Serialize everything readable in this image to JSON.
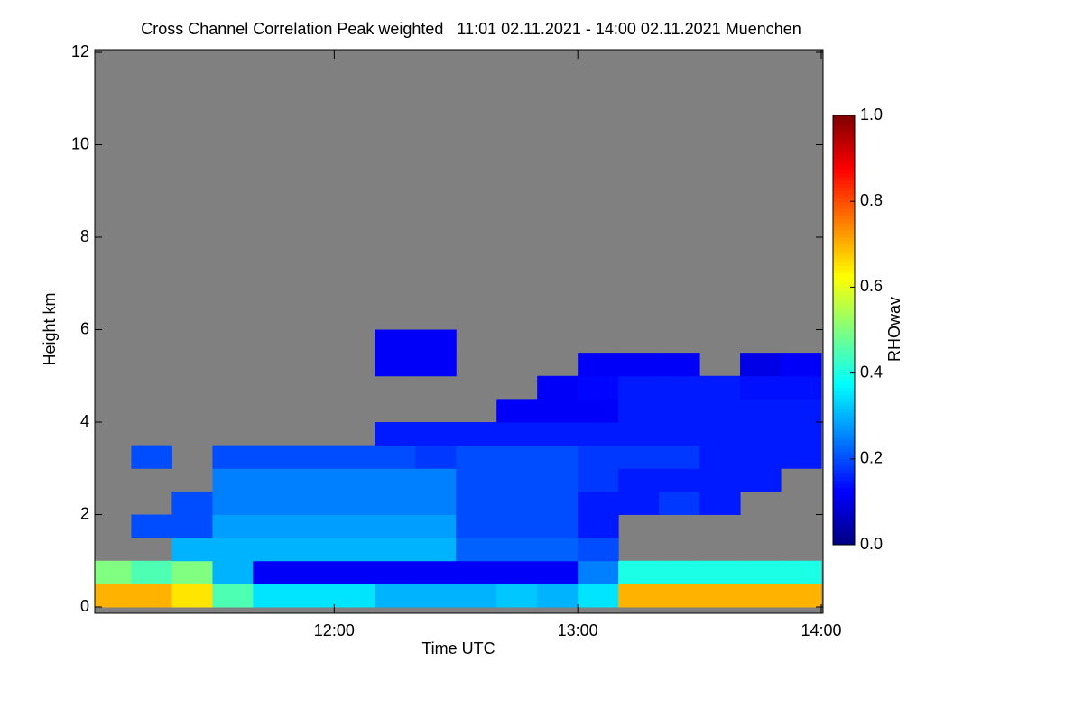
{
  "chart_data": {
    "type": "heatmap",
    "title": "Cross Channel Correlation Peak weighted   11:01 02.11.2021 - 14:00 02.11.2021 Muenchen",
    "x_label": "Time UTC",
    "y_label": "Height km",
    "colorbar_label": "RHOwav",
    "xlim": [
      661,
      840
    ],
    "xticks": [
      {
        "value": 720,
        "label": "12:00"
      },
      {
        "value": 780,
        "label": "13:00"
      },
      {
        "value": 840,
        "label": "14:00"
      }
    ],
    "ylim": [
      0,
      12
    ],
    "yticks": [
      0,
      2,
      4,
      6,
      8,
      10,
      12
    ],
    "clim": [
      0,
      1
    ],
    "cticks": [
      {
        "value": 0,
        "label": "0.0"
      },
      {
        "value": 0.2,
        "label": "0.2"
      },
      {
        "value": 0.4,
        "label": "0.4"
      },
      {
        "value": 0.6,
        "label": "0.6"
      },
      {
        "value": 0.8,
        "label": "0.8"
      },
      {
        "value": 1,
        "label": "1.0"
      }
    ],
    "colormap": "jet",
    "background_color": "#808080",
    "x_bins": [
      661,
      670,
      680,
      690,
      700,
      710,
      720,
      730,
      740,
      750,
      760,
      770,
      780,
      790,
      800,
      810,
      820,
      830,
      840
    ],
    "y_bins": [
      0,
      0.5,
      1,
      1.5,
      2,
      2.5,
      3,
      3.5,
      4,
      4.5,
      5,
      5.5,
      6
    ],
    "z": [
      [
        0.7,
        0.7,
        0.65,
        0.45,
        0.35,
        0.35,
        0.35,
        0.3,
        0.3,
        0.3,
        0.32,
        0.3,
        0.35,
        0.7,
        0.7,
        0.7,
        0.7,
        0.7
      ],
      [
        0.5,
        0.45,
        0.5,
        0.3,
        0.12,
        0.12,
        0.12,
        0.12,
        0.12,
        0.12,
        0.12,
        0.12,
        0.25,
        0.4,
        0.4,
        0.4,
        0.4,
        0.4
      ],
      [
        null,
        null,
        0.3,
        0.3,
        0.3,
        0.3,
        0.3,
        0.3,
        0.3,
        0.22,
        0.22,
        0.22,
        0.2,
        null,
        null,
        null,
        null,
        null
      ],
      [
        null,
        0.2,
        0.2,
        0.28,
        0.28,
        0.28,
        0.28,
        0.28,
        0.28,
        0.2,
        0.2,
        0.2,
        0.15,
        null,
        null,
        null,
        null,
        null
      ],
      [
        null,
        null,
        0.2,
        0.25,
        0.25,
        0.25,
        0.25,
        0.25,
        0.25,
        0.2,
        0.2,
        0.2,
        0.15,
        0.15,
        0.18,
        0.15,
        null,
        null
      ],
      [
        null,
        null,
        null,
        0.25,
        0.25,
        0.25,
        0.25,
        0.25,
        0.25,
        0.2,
        0.2,
        0.2,
        0.18,
        0.15,
        0.15,
        0.15,
        0.15,
        null
      ],
      [
        null,
        0.2,
        null,
        0.2,
        0.2,
        0.2,
        0.2,
        0.2,
        0.18,
        0.2,
        0.2,
        0.2,
        0.18,
        0.18,
        0.18,
        0.15,
        0.15,
        0.15
      ],
      [
        null,
        null,
        null,
        null,
        null,
        null,
        null,
        0.15,
        0.15,
        0.15,
        0.15,
        0.15,
        0.15,
        0.15,
        0.15,
        0.15,
        0.15,
        0.15
      ],
      [
        null,
        null,
        null,
        null,
        null,
        null,
        null,
        null,
        null,
        null,
        0.12,
        0.12,
        0.12,
        0.15,
        0.15,
        0.15,
        0.15,
        0.15
      ],
      [
        null,
        null,
        null,
        null,
        null,
        null,
        null,
        null,
        null,
        null,
        null,
        0.12,
        0.13,
        0.15,
        0.15,
        0.15,
        0.14,
        0.14
      ],
      [
        null,
        null,
        null,
        null,
        null,
        null,
        null,
        0.12,
        0.12,
        null,
        null,
        null,
        0.12,
        0.12,
        0.12,
        null,
        0.1,
        0.12
      ],
      [
        null,
        null,
        null,
        null,
        null,
        null,
        null,
        0.12,
        0.12,
        null,
        null,
        null,
        null,
        null,
        null,
        null,
        null,
        null
      ]
    ]
  }
}
